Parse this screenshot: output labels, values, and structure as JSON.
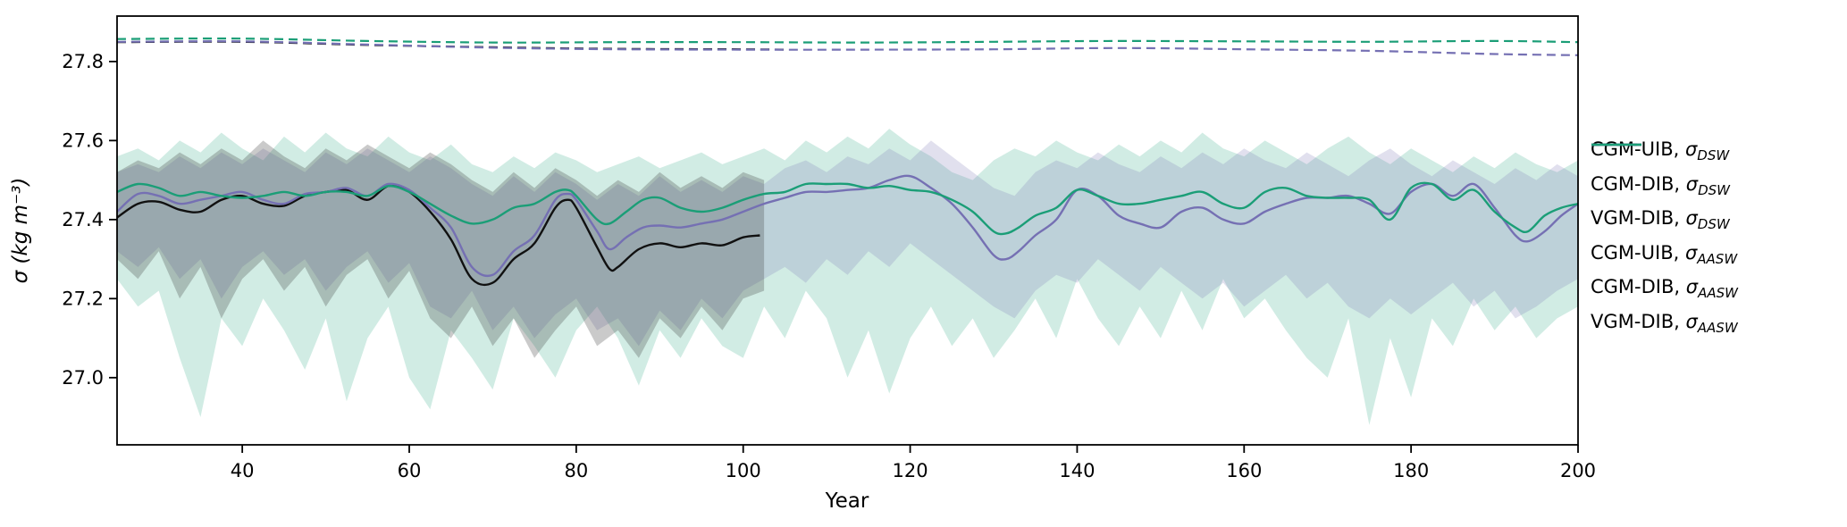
{
  "chart_data": {
    "type": "line",
    "title": "",
    "xlabel": "Year",
    "ylabel": "σ (kg m⁻³)",
    "sigma_symbol": "σ",
    "xlim": [
      25,
      200
    ],
    "ylim": [
      26.83,
      27.915
    ],
    "xticks": [
      40,
      60,
      80,
      100,
      120,
      140,
      160,
      180,
      200
    ],
    "yticks": [
      27.0,
      27.2,
      27.4,
      27.6,
      27.8
    ],
    "grid": false,
    "legend_position": "right-outside",
    "colors": {
      "green": "#1b9e77",
      "purple": "#7570b3",
      "black": "#111111",
      "background": "#ffffff"
    },
    "legend": [
      {
        "id": "cgm-uib-dsw",
        "name": "CGM-UIB",
        "sub": "DSW",
        "color": "#111111",
        "dashed": true
      },
      {
        "id": "cgm-dib-dsw",
        "name": "CGM-DIB",
        "sub": "DSW",
        "color": "#7570b3",
        "dashed": true
      },
      {
        "id": "vgm-dib-dsw",
        "name": "VGM-DIB",
        "sub": "DSW",
        "color": "#1b9e77",
        "dashed": true
      },
      {
        "id": "cgm-uib-aasw",
        "name": "CGM-UIB",
        "sub": "AASW",
        "color": "#111111",
        "dashed": false
      },
      {
        "id": "cgm-dib-aasw",
        "name": "CGM-DIB",
        "sub": "AASW",
        "color": "#7570b3",
        "dashed": false
      },
      {
        "id": "vgm-dib-aasw",
        "name": "VGM-DIB",
        "sub": "AASW",
        "color": "#1b9e77",
        "dashed": false
      }
    ],
    "dsw_x": [
      25,
      40,
      55,
      70,
      85,
      100,
      115,
      130,
      145,
      160,
      175,
      190,
      200
    ],
    "aasw_x": [
      25,
      27.5,
      30,
      32.5,
      35,
      37.5,
      40,
      42.5,
      45,
      47.5,
      50,
      52.5,
      55,
      57.5,
      60,
      62.5,
      65,
      67.5,
      70,
      72.5,
      75,
      77.5,
      79,
      80,
      82.5,
      84,
      86,
      88,
      90,
      92.5,
      95,
      97.5,
      100,
      102.5,
      105,
      107.5,
      110,
      112.5,
      115,
      117.5,
      120,
      122.5,
      125,
      127.5,
      130,
      131.5,
      133,
      135,
      137.5,
      140,
      142.5,
      145,
      147.5,
      150,
      152.5,
      155,
      157.5,
      160,
      162.5,
      165,
      167.5,
      170,
      172.5,
      175,
      177.5,
      180,
      182.5,
      185,
      187.5,
      190,
      192.5,
      194,
      196,
      198,
      200
    ],
    "bands": [
      {
        "id": "vgm-dib-envelope",
        "color": "#1b9e77",
        "opacity": 0.2,
        "x_start": 25,
        "x_step": 2.5,
        "hi": [
          27.56,
          27.58,
          27.55,
          27.6,
          27.57,
          27.62,
          27.58,
          27.55,
          27.61,
          27.57,
          27.62,
          27.58,
          27.56,
          27.61,
          27.57,
          27.55,
          27.59,
          27.54,
          27.52,
          27.56,
          27.53,
          27.57,
          27.55,
          27.52,
          27.54,
          27.56,
          27.53,
          27.55,
          27.57,
          27.54,
          27.56,
          27.58,
          27.55,
          27.6,
          27.57,
          27.61,
          27.58,
          27.63,
          27.59,
          27.56,
          27.52,
          27.5,
          27.55,
          27.58,
          27.56,
          27.6,
          27.57,
          27.55,
          27.59,
          27.56,
          27.6,
          27.57,
          27.62,
          27.58,
          27.56,
          27.6,
          27.57,
          27.54,
          27.58,
          27.61,
          27.57,
          27.54,
          27.58,
          27.55,
          27.52,
          27.56,
          27.53,
          27.57,
          27.54,
          27.52,
          27.55
        ],
        "lo": [
          27.25,
          27.18,
          27.22,
          27.05,
          26.9,
          27.15,
          27.08,
          27.2,
          27.12,
          27.02,
          27.15,
          26.94,
          27.1,
          27.18,
          27.0,
          26.92,
          27.12,
          27.05,
          26.97,
          27.15,
          27.08,
          27.0,
          27.12,
          27.18,
          27.1,
          26.98,
          27.12,
          27.05,
          27.15,
          27.08,
          27.05,
          27.18,
          27.1,
          27.22,
          27.15,
          27.0,
          27.12,
          26.96,
          27.1,
          27.18,
          27.08,
          27.15,
          27.05,
          27.12,
          27.2,
          27.1,
          27.25,
          27.15,
          27.08,
          27.18,
          27.1,
          27.22,
          27.12,
          27.25,
          27.15,
          27.2,
          27.12,
          27.05,
          27.0,
          27.15,
          26.88,
          27.1,
          26.95,
          27.15,
          27.08,
          27.2,
          27.12,
          27.18,
          27.1,
          27.15,
          27.18
        ]
      },
      {
        "id": "cgm-dib-envelope",
        "color": "#7570b3",
        "opacity": 0.22,
        "x_start": 25,
        "x_step": 2.5,
        "hi": [
          27.52,
          27.54,
          27.52,
          27.56,
          27.53,
          27.57,
          27.54,
          27.58,
          27.55,
          27.52,
          27.57,
          27.54,
          27.58,
          27.55,
          27.52,
          27.56,
          27.53,
          27.49,
          27.46,
          27.51,
          27.47,
          27.52,
          27.49,
          27.45,
          27.49,
          27.46,
          27.51,
          27.47,
          27.5,
          27.47,
          27.51,
          27.49,
          27.53,
          27.55,
          27.52,
          27.56,
          27.54,
          27.58,
          27.55,
          27.6,
          27.56,
          27.52,
          27.48,
          27.46,
          27.52,
          27.55,
          27.53,
          27.57,
          27.54,
          27.52,
          27.56,
          27.53,
          27.57,
          27.54,
          27.58,
          27.55,
          27.53,
          27.57,
          27.54,
          27.51,
          27.55,
          27.58,
          27.54,
          27.51,
          27.55,
          27.52,
          27.49,
          27.53,
          27.5,
          27.54,
          27.51
        ],
        "lo": [
          27.32,
          27.28,
          27.33,
          27.25,
          27.3,
          27.2,
          27.28,
          27.32,
          27.26,
          27.3,
          27.22,
          27.28,
          27.32,
          27.24,
          27.29,
          27.18,
          27.15,
          27.22,
          27.12,
          27.18,
          27.1,
          27.16,
          27.2,
          27.12,
          27.15,
          27.08,
          27.17,
          27.12,
          27.2,
          27.15,
          27.22,
          27.25,
          27.28,
          27.24,
          27.3,
          27.26,
          27.32,
          27.28,
          27.34,
          27.3,
          27.26,
          27.22,
          27.18,
          27.15,
          27.22,
          27.26,
          27.24,
          27.3,
          27.26,
          27.22,
          27.28,
          27.24,
          27.2,
          27.24,
          27.18,
          27.22,
          27.26,
          27.2,
          27.24,
          27.18,
          27.15,
          27.2,
          27.16,
          27.2,
          27.24,
          27.18,
          27.22,
          27.15,
          27.18,
          27.22,
          27.25
        ]
      },
      {
        "id": "cgm-uib-envelope",
        "color": "#333333",
        "opacity": 0.26,
        "x_start": 25,
        "x_step": 2.5,
        "hi": [
          27.52,
          27.55,
          27.53,
          27.57,
          27.54,
          27.58,
          27.55,
          27.6,
          27.56,
          27.53,
          27.58,
          27.55,
          27.59,
          27.56,
          27.53,
          27.57,
          27.54,
          27.5,
          27.47,
          27.52,
          27.48,
          27.53,
          27.5,
          27.46,
          27.5,
          27.47,
          27.52,
          27.48,
          27.51,
          27.48,
          27.52,
          27.5
        ],
        "lo": [
          27.3,
          27.25,
          27.32,
          27.2,
          27.28,
          27.15,
          27.25,
          27.3,
          27.22,
          27.28,
          27.18,
          27.26,
          27.3,
          27.2,
          27.27,
          27.15,
          27.1,
          27.18,
          27.08,
          27.15,
          27.05,
          27.12,
          27.18,
          27.08,
          27.12,
          27.05,
          27.15,
          27.1,
          27.18,
          27.12,
          27.2,
          27.22
        ]
      }
    ],
    "series": [
      {
        "id": "cgm-uib-dsw",
        "label": "CGM-UIB, σ_DSW",
        "color": "#111111",
        "dashed": true,
        "x": [
          25,
          40,
          55,
          70,
          85,
          100,
          105
        ],
        "y": [
          27.849,
          27.85,
          27.842,
          27.836,
          27.832,
          27.831,
          27.83
        ]
      },
      {
        "id": "cgm-dib-dsw",
        "label": "CGM-DIB, σ_DSW",
        "color": "#7570b3",
        "dashed": true,
        "x_key": "dsw_x",
        "y": [
          27.85,
          27.851,
          27.843,
          27.835,
          27.831,
          27.83,
          27.83,
          27.831,
          27.834,
          27.831,
          27.827,
          27.819,
          27.816
        ]
      },
      {
        "id": "vgm-dib-dsw",
        "label": "VGM-DIB, σ_DSW",
        "color": "#1b9e77",
        "dashed": true,
        "x_key": "dsw_x",
        "y": [
          27.857,
          27.858,
          27.852,
          27.848,
          27.849,
          27.849,
          27.848,
          27.85,
          27.852,
          27.851,
          27.85,
          27.852,
          27.849
        ]
      },
      {
        "id": "cgm-uib-aasw",
        "label": "CGM-UIB, σ_AASW",
        "color": "#111111",
        "dashed": false,
        "x": [
          25,
          27.5,
          30,
          32.5,
          35,
          37.5,
          40,
          42.5,
          45,
          47.5,
          50,
          52.5,
          55,
          57.5,
          60,
          62.5,
          65,
          67.5,
          70,
          72.5,
          75,
          77.5,
          79,
          80,
          82.5,
          84,
          85,
          87.5,
          90,
          92.5,
          95,
          97.5,
          100,
          102
        ],
        "y": [
          27.405,
          27.44,
          27.445,
          27.425,
          27.42,
          27.45,
          27.46,
          27.44,
          27.435,
          27.46,
          27.47,
          27.475,
          27.45,
          27.485,
          27.47,
          27.42,
          27.35,
          27.25,
          27.24,
          27.3,
          27.34,
          27.43,
          27.45,
          27.43,
          27.33,
          27.275,
          27.28,
          27.325,
          27.34,
          27.33,
          27.34,
          27.335,
          27.355,
          27.36
        ]
      },
      {
        "id": "cgm-dib-aasw",
        "label": "CGM-DIB, σ_AASW",
        "color": "#7570b3",
        "dashed": false,
        "x_key": "aasw_x",
        "y": [
          27.42,
          27.465,
          27.46,
          27.44,
          27.45,
          27.46,
          27.47,
          27.45,
          27.44,
          27.465,
          27.47,
          27.48,
          27.46,
          27.49,
          27.475,
          27.43,
          27.38,
          27.28,
          27.26,
          27.32,
          27.36,
          27.45,
          27.465,
          27.45,
          27.37,
          27.325,
          27.355,
          27.38,
          27.385,
          27.38,
          27.39,
          27.4,
          27.42,
          27.44,
          27.455,
          27.47,
          27.47,
          27.475,
          27.48,
          27.5,
          27.51,
          27.48,
          27.44,
          27.38,
          27.31,
          27.3,
          27.32,
          27.36,
          27.4,
          27.475,
          27.46,
          27.41,
          27.39,
          27.38,
          27.42,
          27.43,
          27.4,
          27.39,
          27.42,
          27.44,
          27.455,
          27.455,
          27.46,
          27.44,
          27.415,
          27.47,
          27.49,
          27.46,
          27.49,
          27.43,
          27.36,
          27.345,
          27.37,
          27.41,
          27.44
        ]
      },
      {
        "id": "vgm-dib-aasw",
        "label": "VGM-DIB, σ_AASW",
        "color": "#1b9e77",
        "dashed": false,
        "x_key": "aasw_x",
        "y": [
          27.47,
          27.49,
          27.48,
          27.46,
          27.47,
          27.46,
          27.455,
          27.46,
          27.47,
          27.46,
          27.47,
          27.47,
          27.46,
          27.485,
          27.47,
          27.44,
          27.41,
          27.39,
          27.4,
          27.43,
          27.44,
          27.47,
          27.475,
          27.46,
          27.4,
          27.39,
          27.42,
          27.45,
          27.455,
          27.43,
          27.42,
          27.43,
          27.45,
          27.465,
          27.47,
          27.49,
          27.49,
          27.49,
          27.48,
          27.485,
          27.475,
          27.47,
          27.45,
          27.42,
          27.37,
          27.365,
          27.38,
          27.41,
          27.43,
          27.475,
          27.46,
          27.44,
          27.44,
          27.45,
          27.46,
          27.47,
          27.44,
          27.43,
          27.47,
          27.48,
          27.46,
          27.455,
          27.455,
          27.45,
          27.4,
          27.48,
          27.49,
          27.45,
          27.475,
          27.42,
          27.38,
          27.37,
          27.41,
          27.43,
          27.44
        ]
      }
    ]
  }
}
